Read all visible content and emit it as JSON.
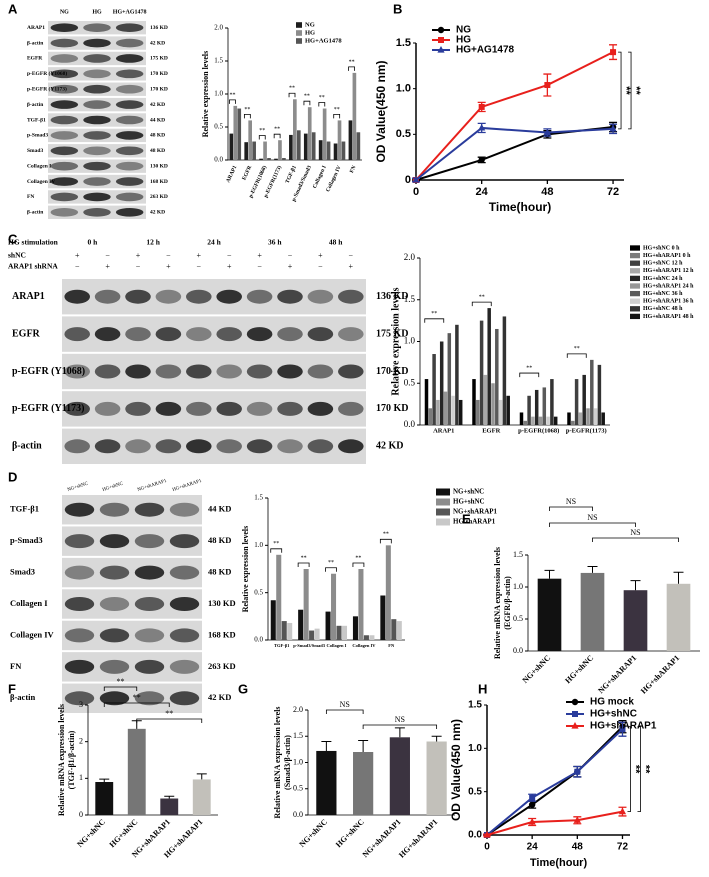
{
  "figure_labels": [
    "A",
    "B",
    "C",
    "D",
    "E",
    "F",
    "G",
    "H"
  ],
  "blots": [
    {
      "lanes": [
        "NG",
        "HG",
        "HG+AG1478"
      ],
      "rows": [
        {
          "label": "ARAP1",
          "kd": "136 KD"
        },
        {
          "label": "β-actin",
          "kd": "42 KD"
        },
        {
          "label": "EGFR",
          "kd": "175 KD"
        },
        {
          "label": "p-EGFR (Y1068)",
          "kd": "170 KD"
        },
        {
          "label": "p-EGFR (Y1173)",
          "kd": "170 KD"
        },
        {
          "label": "β-actin",
          "kd": "42 KD"
        },
        {
          "label": "TGF-β1",
          "kd": "44 KD"
        },
        {
          "label": "p-Smad3",
          "kd": "48 KD"
        },
        {
          "label": "Smad3",
          "kd": "48 KD"
        },
        {
          "label": "Collagen I",
          "kd": "130 KD"
        },
        {
          "label": "Collagen IV",
          "kd": "168 KD"
        },
        {
          "label": "FN",
          "kd": "263 KD"
        },
        {
          "label": "β-actin",
          "kd": "42 KD"
        }
      ]
    },
    {
      "header": {
        "title": "HG stimulation",
        "times": [
          "0 h",
          "12 h",
          "24 h",
          "36 h",
          "48 h"
        ],
        "rows": [
          {
            "label": "shNC",
            "signs": [
              "+",
              "−",
              "+",
              "−",
              "+",
              "−",
              "+",
              "−",
              "+",
              "−"
            ]
          },
          {
            "label": "ARAP1 shRNA",
            "signs": [
              "−",
              "+",
              "−",
              "+",
              "−",
              "+",
              "−",
              "+",
              "−",
              "+"
            ]
          }
        ]
      },
      "rows": [
        {
          "label": "ARAP1",
          "kd": "136 KD"
        },
        {
          "label": "EGFR",
          "kd": "175 KD"
        },
        {
          "label": "p-EGFR (Y1068)",
          "kd": "170 KD"
        },
        {
          "label": "p-EGFR (Y1173)",
          "kd": "170 KD"
        },
        {
          "label": "β-actin",
          "kd": "42 KD"
        }
      ]
    },
    {
      "lanes": [
        "NG+shNC",
        "HG+shNC",
        "NG+shARAP1",
        "HG+shARAP1"
      ],
      "rows": [
        {
          "label": "TGF-β1",
          "kd": "44 KD"
        },
        {
          "label": "p-Smad3",
          "kd": "48 KD"
        },
        {
          "label": "Smad3",
          "kd": "48 KD"
        },
        {
          "label": "Collagen I",
          "kd": "130 KD"
        },
        {
          "label": "Collagen IV",
          "kd": "168 KD"
        },
        {
          "label": "FN",
          "kd": "263 KD"
        },
        {
          "label": "β-actin",
          "kd": "42 KD"
        }
      ]
    }
  ],
  "chart_data": [
    {
      "type": "bar",
      "y_label": "Relative expression levels",
      "categories": [
        "ARAP1",
        "EGFR",
        "p-EGFR(1068)",
        "p-EGFR(1173)",
        "TGF-β1",
        "p-Smad3/Smad3",
        "Collagen I",
        "Collagen IV",
        "FN"
      ],
      "series": [
        {
          "name": "NG",
          "color": "#1e1e1e",
          "values": [
            0.4,
            0.27,
            0.02,
            0.02,
            0.38,
            0.4,
            0.3,
            0.25,
            0.6
          ]
        },
        {
          "name": "HG",
          "color": "#8c8c8c",
          "values": [
            0.82,
            0.6,
            0.28,
            0.3,
            0.92,
            0.8,
            0.78,
            0.6,
            1.32
          ]
        },
        {
          "name": "HG+AG1478",
          "color": "#555555",
          "values": [
            0.78,
            0.28,
            0.03,
            0.03,
            0.45,
            0.42,
            0.28,
            0.28,
            0.42
          ]
        }
      ],
      "ylim": [
        0,
        2
      ],
      "yticks": [
        {
          "value": 0,
          "label": "0.0"
        },
        0.5,
        {
          "value": 1,
          "label": "1.0"
        },
        1.5,
        {
          "value": 2,
          "label": "2.0"
        }
      ],
      "annotations": [
        "**",
        "**",
        "**",
        "**",
        "**",
        "**",
        "**",
        "**",
        "**"
      ]
    },
    {
      "type": "line",
      "y_label": "OD Value(450 nm)",
      "x_label": "Time(hour)",
      "x": [
        0,
        24,
        48,
        72
      ],
      "series": [
        {
          "name": "NG",
          "color": "#000000",
          "marker": "circle",
          "values": [
            0,
            0.22,
            0.5,
            0.58
          ],
          "errors": [
            0.01,
            0.03,
            0.04,
            0.05
          ]
        },
        {
          "name": "HG",
          "color": "#e8201c",
          "marker": "square",
          "values": [
            0,
            0.8,
            1.04,
            1.4
          ],
          "errors": [
            0.02,
            0.05,
            0.12,
            0.08
          ]
        },
        {
          "name": "HG+AG1478",
          "color": "#2a3c9c",
          "marker": "triangle",
          "values": [
            0,
            0.57,
            0.52,
            0.56
          ],
          "errors": [
            0.02,
            0.05,
            0.04,
            0.05
          ]
        }
      ],
      "xlim": [
        0,
        76
      ],
      "xticks": [
        0,
        24,
        48,
        72
      ],
      "ylim": [
        0,
        1.5
      ],
      "yticks": [
        0,
        0.5,
        {
          "value": 1,
          "label": "1.0"
        },
        1.5
      ],
      "annotations": [
        "**",
        "**"
      ]
    },
    {
      "type": "bar",
      "y_label": "Relative expression levels",
      "categories": [
        "ARAP1",
        "EGFR",
        "p-EGFR(1068)",
        "p-EGFR(1173)"
      ],
      "series": [
        {
          "name": "HG+shNC 0 h",
          "color": "#000000",
          "values": [
            0.55,
            0.55,
            0.15,
            0.15
          ]
        },
        {
          "name": "HG+shARAP1 0 h",
          "color": "#7a7a7a",
          "values": [
            0.2,
            0.3,
            0.05,
            0.05
          ]
        },
        {
          "name": "HG+shNC 12 h",
          "color": "#404040",
          "values": [
            0.85,
            1.25,
            0.35,
            0.55
          ]
        },
        {
          "name": "HG+shARAP1 12 h",
          "color": "#a8a8a8",
          "values": [
            0.3,
            0.6,
            0.1,
            0.15
          ]
        },
        {
          "name": "HG+shNC 24 h",
          "color": "#262626",
          "values": [
            1.0,
            1.4,
            0.42,
            0.6
          ]
        },
        {
          "name": "HG+shARAP1 24 h",
          "color": "#969696",
          "values": [
            0.4,
            0.5,
            0.1,
            0.2
          ]
        },
        {
          "name": "HG+shNC 36 h",
          "color": "#5a5a5a",
          "values": [
            1.1,
            1.15,
            0.45,
            0.78
          ]
        },
        {
          "name": "HG+shARAP1 36 h",
          "color": "#cfcfcf",
          "values": [
            0.35,
            0.3,
            0.1,
            0.2
          ]
        },
        {
          "name": "HG+shNC 48 h",
          "color": "#333333",
          "values": [
            1.2,
            1.3,
            0.55,
            0.72
          ]
        },
        {
          "name": "HG+shARAP1 48 h",
          "color": "#141414",
          "values": [
            0.3,
            0.35,
            0.1,
            0.15
          ]
        }
      ],
      "ylim": [
        0,
        2
      ],
      "yticks": [
        {
          "value": 0,
          "label": "0.0"
        },
        0.5,
        {
          "value": 1,
          "label": "1.0"
        },
        1.5,
        {
          "value": 2,
          "label": "2.0"
        }
      ],
      "annotations": [
        "**",
        "**",
        "**",
        "**"
      ]
    },
    {
      "type": "bar",
      "y_label": "Relative expression levels",
      "categories": [
        "TGF-β1",
        "p-Smad3/Smad3",
        "Collagen I",
        "Collagen IV",
        "FN"
      ],
      "series": [
        {
          "name": "NG+shNC",
          "color": "#111111",
          "values": [
            0.42,
            0.32,
            0.3,
            0.25,
            0.47
          ]
        },
        {
          "name": "HG+shNC",
          "color": "#8c8c8c",
          "values": [
            0.9,
            0.75,
            0.7,
            0.75,
            1.0
          ]
        },
        {
          "name": "NG+shARAP1",
          "color": "#555555",
          "values": [
            0.2,
            0.1,
            0.15,
            0.05,
            0.22
          ]
        },
        {
          "name": "HG shARAP1",
          "color": "#c8c8c8",
          "values": [
            0.18,
            0.12,
            0.15,
            0.05,
            0.2
          ]
        }
      ],
      "ylim": [
        0,
        1.5
      ],
      "yticks": [
        {
          "value": 0,
          "label": "0.0"
        },
        0.5,
        {
          "value": 1,
          "label": "1.0"
        },
        1.5
      ],
      "annotations": [
        "**",
        "**",
        "**",
        "**",
        "**"
      ]
    },
    {
      "type": "bar",
      "y_label": [
        "Relative mRNA expression levels",
        "(EGFR/β-actin)"
      ],
      "categories": [
        "NG+shNC",
        "HG+shNC",
        "NG+shARAP1",
        "HG+shARAP1"
      ],
      "values": [
        1.13,
        1.22,
        0.95,
        1.05
      ],
      "errors": [
        0.13,
        0.1,
        0.15,
        0.18
      ],
      "colors": [
        "#111111",
        "#767676",
        "#3b3340",
        "#c2c0ba"
      ],
      "ylim": [
        0,
        1.5
      ],
      "yticks": [
        {
          "value": 0,
          "label": "0.0"
        },
        0.5,
        {
          "value": 1,
          "label": "1.0"
        },
        1.5
      ],
      "annotations": [
        "NS",
        "NS",
        "NS"
      ]
    },
    {
      "type": "bar",
      "y_label": [
        "Relative mRNA expression levels",
        "(TGF-β1/β-actin)"
      ],
      "categories": [
        "NG+shNC",
        "HG+shNC",
        "NG+shARAP1",
        "HG+shARAP1"
      ],
      "values": [
        0.9,
        2.35,
        0.45,
        0.97
      ],
      "errors": [
        0.08,
        0.22,
        0.06,
        0.15
      ],
      "colors": [
        "#111111",
        "#767676",
        "#3b3340",
        "#c2c0ba"
      ],
      "ylim": [
        0,
        3
      ],
      "yticks": [
        0,
        1,
        2,
        3
      ],
      "annotations": [
        "**",
        "**",
        "**"
      ]
    },
    {
      "type": "bar",
      "y_label": [
        "Relative mRNA expression levels",
        "(Smad3/β-actin)"
      ],
      "categories": [
        "NG+shNC",
        "HG+shNC",
        "NG+shARAP1",
        "HG+shARAP1"
      ],
      "values": [
        1.22,
        1.2,
        1.48,
        1.4
      ],
      "errors": [
        0.18,
        0.22,
        0.18,
        0.1
      ],
      "colors": [
        "#111111",
        "#767676",
        "#3b3340",
        "#c2c0ba"
      ],
      "ylim": [
        0,
        2
      ],
      "yticks": [
        {
          "value": 0,
          "label": "0.0"
        },
        0.5,
        {
          "value": 1,
          "label": "1.0"
        },
        1.5,
        {
          "value": 2,
          "label": "2.0"
        }
      ],
      "annotations": [
        "NS",
        "NS"
      ]
    },
    {
      "type": "line",
      "y_label": "OD Value(450 nm)",
      "x_label": "Time(hour)",
      "x": [
        0,
        24,
        48,
        72
      ],
      "series": [
        {
          "name": "HG mock",
          "color": "#000000",
          "marker": "circle",
          "values": [
            0,
            0.35,
            0.73,
            1.25
          ],
          "errors": [
            0.01,
            0.04,
            0.06,
            0.07
          ]
        },
        {
          "name": "HG+shNC",
          "color": "#2a3c9c",
          "marker": "square",
          "values": [
            0,
            0.43,
            0.73,
            1.22
          ],
          "errors": [
            0.01,
            0.04,
            0.06,
            0.08
          ]
        },
        {
          "name": "HG+shARAP1",
          "color": "#e8201c",
          "marker": "triangle",
          "values": [
            0,
            0.15,
            0.17,
            0.27
          ],
          "errors": [
            0.01,
            0.04,
            0.04,
            0.05
          ]
        }
      ],
      "xlim": [
        0,
        76
      ],
      "xticks": [
        0,
        24,
        48,
        72
      ],
      "ylim": [
        0,
        1.5
      ],
      "yticks": [
        {
          "value": 0,
          "label": "0.0"
        },
        0.5,
        {
          "value": 1,
          "label": "1.0"
        },
        1.5
      ],
      "annotations": [
        "**",
        "**"
      ]
    }
  ]
}
